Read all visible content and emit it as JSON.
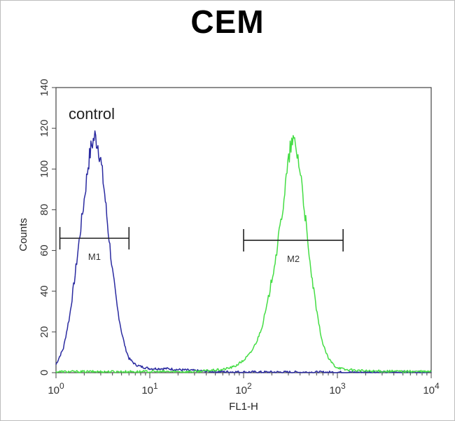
{
  "chart_data": {
    "type": "line",
    "title": "CEM",
    "xlabel": "FL1-H",
    "ylabel": "Counts",
    "x_scale": "log",
    "xlim": [
      1,
      10000
    ],
    "ylim": [
      0,
      140
    ],
    "x_ticks": [
      {
        "value": 1,
        "base": "10",
        "exp": "0"
      },
      {
        "value": 10,
        "base": "10",
        "exp": "1"
      },
      {
        "value": 100,
        "base": "10",
        "exp": "2"
      },
      {
        "value": 1000,
        "base": "10",
        "exp": "3"
      },
      {
        "value": 10000,
        "base": "10",
        "exp": "4"
      }
    ],
    "y_ticks": [
      0,
      20,
      40,
      60,
      80,
      100,
      120,
      140
    ],
    "annotation": "control",
    "series": [
      {
        "color": "#2a2aa0",
        "x": [
          1.0,
          1.2,
          1.4,
          1.6,
          1.8,
          2.0,
          2.2,
          2.4,
          2.6,
          2.8,
          3.0,
          3.3,
          3.6,
          4.0,
          4.5,
          5.0,
          5.5,
          6.0,
          7.0,
          8.0,
          10,
          15,
          20,
          30,
          50,
          100,
          1000,
          10000
        ],
        "y": [
          4,
          12,
          28,
          48,
          68,
          85,
          102,
          112,
          116,
          112,
          104,
          88,
          70,
          50,
          32,
          20,
          12,
          7,
          4,
          3,
          2,
          2,
          1.5,
          1,
          0.5,
          0.3,
          0.2,
          0.2
        ]
      },
      {
        "color": "#44dd44",
        "x": [
          1,
          30,
          60,
          80,
          100,
          120,
          140,
          160,
          180,
          200,
          230,
          260,
          290,
          320,
          350,
          380,
          420,
          460,
          500,
          560,
          620,
          700,
          800,
          950,
          1200,
          2000,
          5000,
          10000
        ],
        "y": [
          0.5,
          0.5,
          1.5,
          3,
          6,
          10,
          16,
          24,
          34,
          46,
          62,
          80,
          98,
          112,
          113,
          106,
          92,
          74,
          56,
          40,
          26,
          14,
          7,
          3,
          1.5,
          0.8,
          0.6,
          0.5
        ]
      }
    ],
    "gates": [
      {
        "label": "M1",
        "x_start": 1.1,
        "x_end": 6.0,
        "y": 66
      },
      {
        "label": "M2",
        "x_start": 100,
        "x_end": 1150,
        "y": 65
      }
    ]
  }
}
